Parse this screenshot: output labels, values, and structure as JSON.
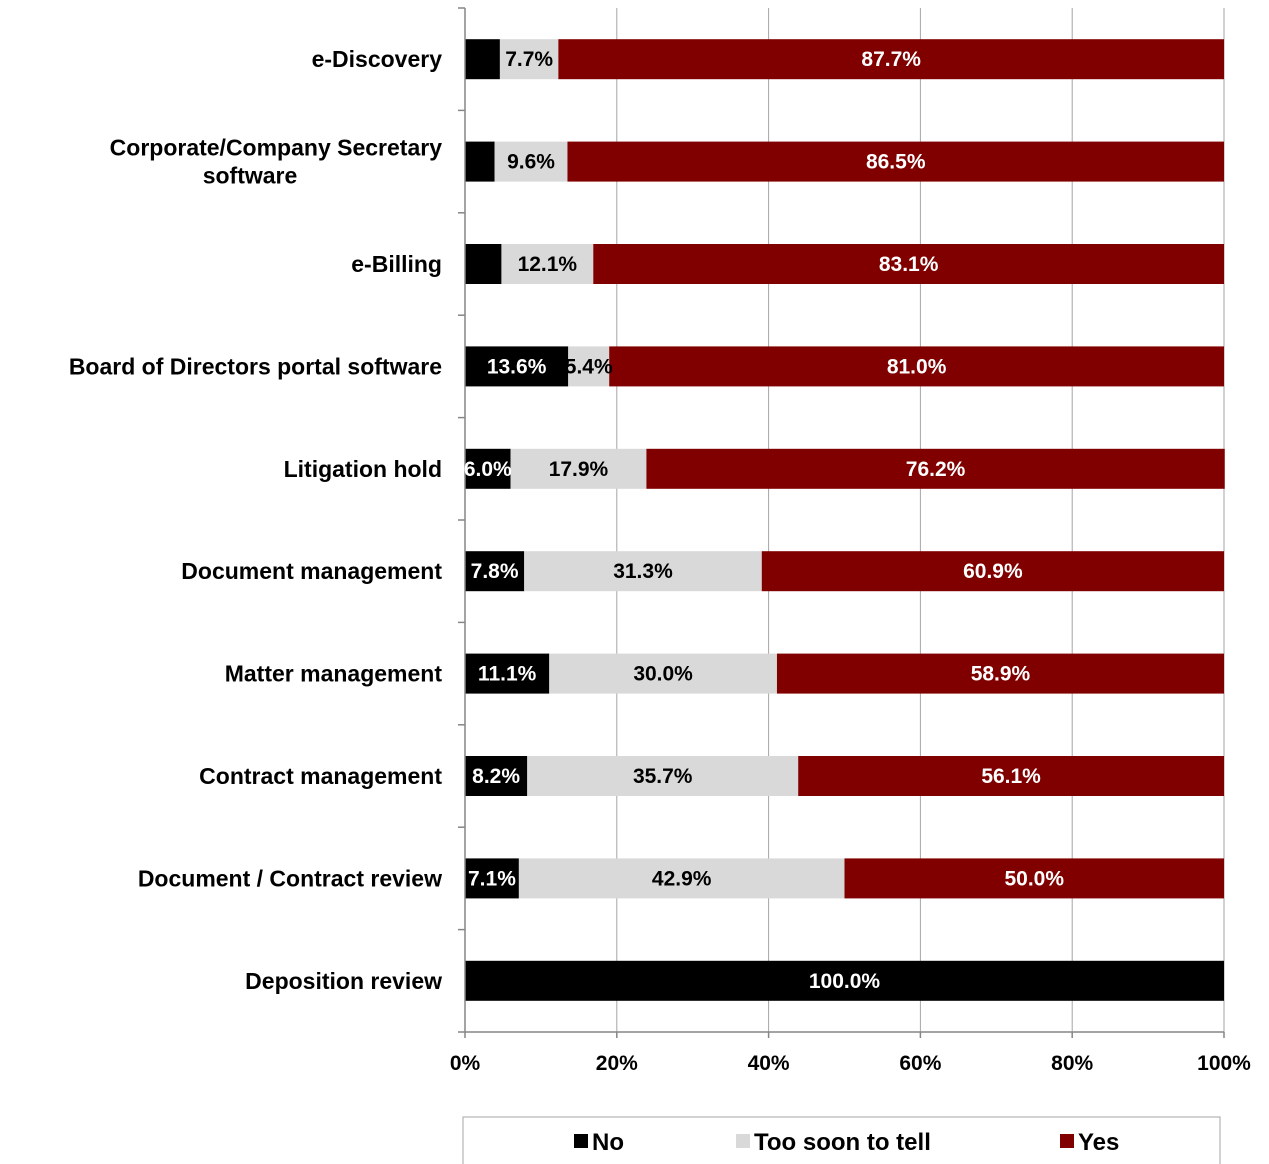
{
  "chart_data": {
    "type": "bar",
    "orientation": "horizontal",
    "stacked": "percent",
    "categories": [
      "e-Discovery",
      "Corporate/Company Secretary software",
      "e-Billing",
      "Board of Directors portal software",
      "Litigation hold",
      "Document management",
      "Matter management",
      "Contract management",
      "Document / Contract review",
      "Deposition review"
    ],
    "category_lines": [
      [
        "e-Discovery"
      ],
      [
        "Corporate/Company Secretary",
        "software"
      ],
      [
        "e-Billing"
      ],
      [
        "Board of Directors portal software"
      ],
      [
        "Litigation hold"
      ],
      [
        "Document management"
      ],
      [
        "Matter management"
      ],
      [
        "Contract management"
      ],
      [
        "Document / Contract review"
      ],
      [
        "Deposition review"
      ]
    ],
    "series": [
      {
        "name": "No",
        "color": "#000000",
        "label_color": "#ffffff",
        "values": [
          4.6,
          3.9,
          4.8,
          13.6,
          6.0,
          7.8,
          11.1,
          8.2,
          7.1,
          100.0
        ],
        "labels": [
          "",
          "",
          "",
          "13.6%",
          "6.0%",
          "7.8%",
          "11.1%",
          "8.2%",
          "7.1%",
          "100.0%"
        ]
      },
      {
        "name": "Too soon to tell",
        "color": "#d9d9d9",
        "label_color": "#000000",
        "values": [
          7.7,
          9.6,
          12.1,
          5.4,
          17.9,
          31.3,
          30.0,
          35.7,
          42.9,
          0
        ],
        "labels": [
          "7.7%",
          "9.6%",
          "12.1%",
          "5.4%",
          "17.9%",
          "31.3%",
          "30.0%",
          "35.7%",
          "42.9%",
          ""
        ]
      },
      {
        "name": "Yes",
        "color": "#800000",
        "label_color": "#ffffff",
        "values": [
          87.7,
          86.5,
          83.1,
          81.0,
          76.2,
          60.9,
          58.9,
          56.1,
          50.0,
          0
        ],
        "labels": [
          "87.7%",
          "86.5%",
          "83.1%",
          "81.0%",
          "76.2%",
          "60.9%",
          "58.9%",
          "56.1%",
          "50.0%",
          ""
        ]
      }
    ],
    "xlim": [
      0,
      100
    ],
    "x_ticks": [
      "0%",
      "20%",
      "40%",
      "60%",
      "80%",
      "100%"
    ],
    "grid": true,
    "legend": {
      "position": "bottom",
      "entries": [
        "No",
        "Too soon to tell",
        "Yes"
      ]
    },
    "title": "",
    "xlabel": "",
    "ylabel": ""
  }
}
